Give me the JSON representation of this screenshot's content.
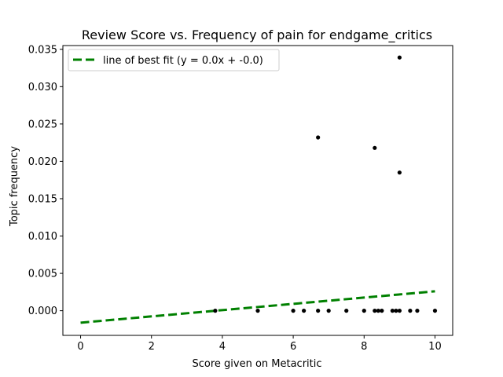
{
  "chart_data": {
    "type": "scatter",
    "title": "Review Score vs. Frequency of pain for endgame_critics",
    "xlabel": "Score given on Metacritic",
    "ylabel": "Topic frequency",
    "xlim": [
      -0.5,
      10.5
    ],
    "ylim": [
      -0.0033,
      0.0355
    ],
    "xticks": [
      0,
      2,
      4,
      6,
      8,
      10
    ],
    "xtick_labels": [
      "0",
      "2",
      "4",
      "6",
      "8",
      "10"
    ],
    "yticks": [
      0.0,
      0.005,
      0.01,
      0.015,
      0.02,
      0.025,
      0.03,
      0.035
    ],
    "ytick_labels": [
      "0.000",
      "0.005",
      "0.010",
      "0.015",
      "0.020",
      "0.025",
      "0.030",
      "0.035"
    ],
    "grid": false,
    "legend_position": "upper-left",
    "series": [
      {
        "kind": "scatter",
        "color": "#000000",
        "points": [
          [
            3.8,
            0.0
          ],
          [
            5.0,
            0.0
          ],
          [
            6.0,
            0.0
          ],
          [
            6.3,
            0.0
          ],
          [
            6.7,
            0.0
          ],
          [
            7.0,
            0.0
          ],
          [
            7.5,
            0.0
          ],
          [
            8.0,
            0.0
          ],
          [
            8.3,
            0.0
          ],
          [
            8.4,
            0.0
          ],
          [
            8.5,
            0.0
          ],
          [
            8.8,
            0.0
          ],
          [
            8.9,
            0.0
          ],
          [
            9.0,
            0.0
          ],
          [
            9.3,
            0.0
          ],
          [
            9.5,
            0.0
          ],
          [
            10.0,
            0.0
          ],
          [
            6.7,
            0.0232
          ],
          [
            8.3,
            0.0218
          ],
          [
            9.0,
            0.0339
          ],
          [
            9.0,
            0.0185
          ]
        ]
      },
      {
        "kind": "line",
        "name": "line of best fit (y = 0.0x + -0.0)",
        "color": "#008000",
        "dash": "dashed",
        "x": [
          0,
          10
        ],
        "y": [
          -0.0016,
          0.0026
        ]
      }
    ]
  }
}
